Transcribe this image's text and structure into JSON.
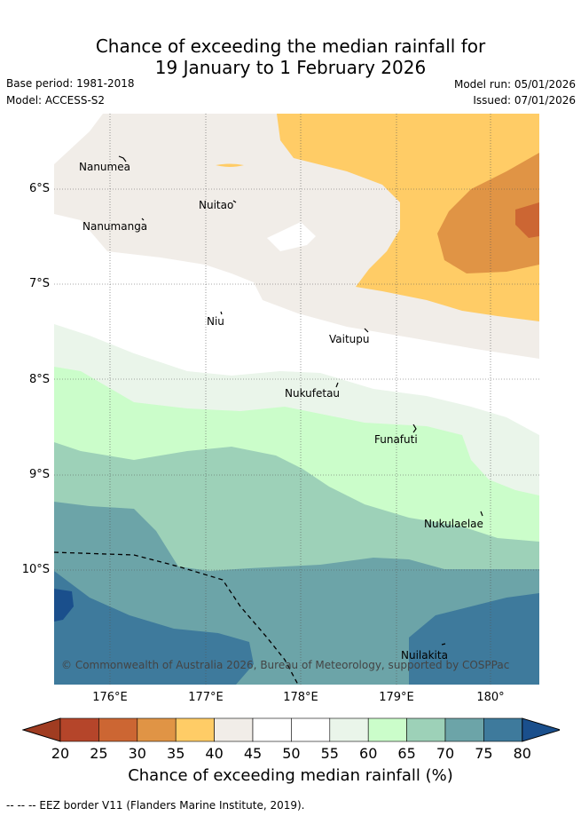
{
  "title_line1": "Chance of exceeding the median rainfall for",
  "title_line2": "19 January to 1 February 2026",
  "base_period": "Base period: 1981-2018",
  "model": "Model: ACCESS-S2",
  "model_run": "Model run: 05/01/2026",
  "issued": "Issued: 07/01/2026",
  "latitudes": [
    "6°S",
    "7°S",
    "8°S",
    "9°S",
    "10°S"
  ],
  "longitudes": [
    "176°E",
    "177°E",
    "178°E",
    "179°E",
    "180°"
  ],
  "places": {
    "nanumea": "Nanumea",
    "nuitao": "Nuitao",
    "nanumanga": "Nanumanga",
    "niu": "Niu",
    "vaitupu": "Vaitupu",
    "nukufetau": "Nukufetau",
    "funafuti": "Funafuti",
    "nukulaelae": "Nukulaelae",
    "nuilakita": "Nuilakita"
  },
  "copyright": "© Commonwealth of Australia 2026, Bureau of Meteorology, supported by COSPPac",
  "colorbar": {
    "labels": [
      "20",
      "25",
      "30",
      "35",
      "40",
      "45",
      "50",
      "55",
      "60",
      "65",
      "70",
      "75",
      "80"
    ],
    "colors": [
      "#a03c21",
      "#b5452a",
      "#cc6633",
      "#e09445",
      "#ffcc66",
      "#f1ede8",
      "#ffffff",
      "#ffffff",
      "#eaf5ea",
      "#cbfdca",
      "#9dd1b8",
      "#6ca4a8",
      "#3e7a9c",
      "#1a4f8c"
    ],
    "title": "Chance of exceeding median rainfall (%)"
  },
  "footnote": "-- -- -- EEZ border V11 (Flanders Marine Institute, 2019)."
}
